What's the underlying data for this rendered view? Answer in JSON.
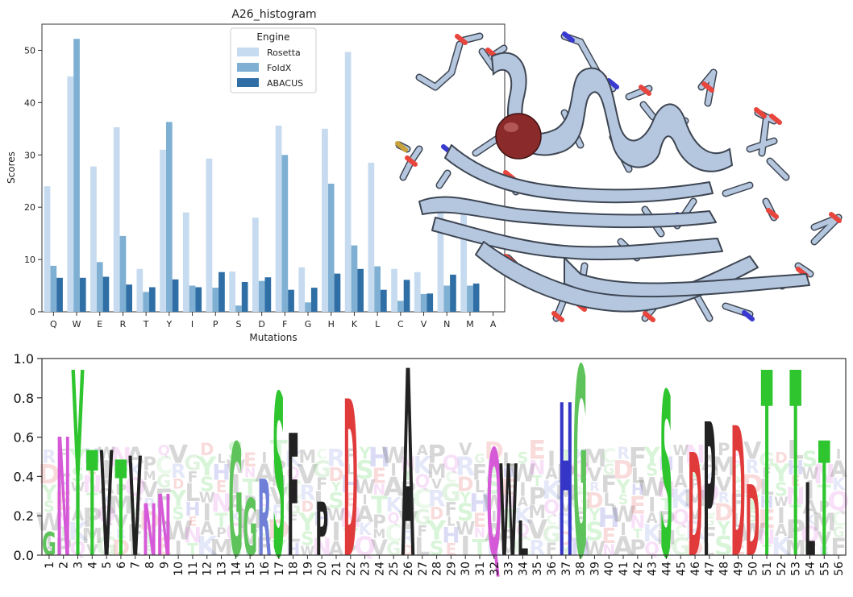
{
  "colors": {
    "rosetta": "#c6dbef",
    "foldx": "#7fb0d3",
    "abacus": "#2f6fa6",
    "protein_ribbon": "#b5c7df",
    "protein_outline": "#3e4653",
    "atom_sphere": "#8b2a2a",
    "oxygen": "#e8453c",
    "nitrogen": "#3a3ad0",
    "sulfur": "#c8a23a"
  },
  "histogram": {
    "title": "A26_histogram",
    "xlabel": "Mutations",
    "ylabel": "Scores",
    "legend_title": "Engine",
    "legend_position": "top-center"
  },
  "chart_data": [
    {
      "type": "bar",
      "title": "A26_histogram",
      "xlabel": "Mutations",
      "ylabel": "Scores",
      "ylim": [
        0,
        55
      ],
      "yticks": [
        0,
        10,
        20,
        30,
        40,
        50
      ],
      "grid": false,
      "legend_title": "Engine",
      "categories": [
        "Q",
        "W",
        "E",
        "R",
        "T",
        "Y",
        "I",
        "P",
        "S",
        "D",
        "F",
        "G",
        "H",
        "K",
        "L",
        "C",
        "V",
        "N",
        "M",
        "A"
      ],
      "series": [
        {
          "name": "Rosetta",
          "values": [
            24,
            45,
            27.8,
            35.3,
            8.2,
            31,
            19,
            29.3,
            7.7,
            18,
            35.6,
            8.5,
            35,
            49.7,
            28.5,
            8.2,
            7.6,
            19,
            19,
            0
          ]
        },
        {
          "name": "FoldX",
          "values": [
            8.8,
            52.2,
            9.5,
            14.5,
            3.8,
            36.3,
            5,
            4.6,
            1.2,
            5.9,
            30,
            1.8,
            24.5,
            12.7,
            8.7,
            2.1,
            3.4,
            5,
            5,
            0
          ]
        },
        {
          "name": "ABACUS",
          "values": [
            6.5,
            6.5,
            6.7,
            5.2,
            4.7,
            6.2,
            4.7,
            7.6,
            5.7,
            6.6,
            4.2,
            4.6,
            7.3,
            8.2,
            4.2,
            6.1,
            3.5,
            7.1,
            5.4,
            0
          ]
        }
      ]
    },
    {
      "type": "sequence-logo",
      "ylim": [
        0,
        1.0
      ],
      "yticks": [
        "0.0",
        "0.2",
        "0.4",
        "0.6",
        "0.8",
        "1.0"
      ],
      "positions": [
        "1",
        "2",
        "3",
        "4",
        "5",
        "6",
        "7",
        "8",
        "9",
        "10",
        "11",
        "12",
        "13",
        "14",
        "15",
        "16",
        "17",
        "18",
        "19",
        "20",
        "21",
        "22",
        "23",
        "24",
        "25",
        "26",
        "27",
        "28",
        "29",
        "30",
        "31",
        "32",
        "33",
        "34",
        "35",
        "36",
        "37",
        "38",
        "39",
        "40",
        "41",
        "42",
        "43",
        "44",
        "45",
        "46",
        "47",
        "48",
        "49",
        "50",
        "51",
        "52",
        "53",
        "54",
        "55",
        "56"
      ],
      "dominant_letters": [
        {
          "pos": 1,
          "letter": "G",
          "height": 0.12
        },
        {
          "pos": 2,
          "letter": "N",
          "height": 0.62
        },
        {
          "pos": 3,
          "letter": "Y",
          "height": 0.97
        },
        {
          "pos": 4,
          "letter": "T",
          "height": 0.55
        },
        {
          "pos": 5,
          "letter": "V",
          "height": 0.55
        },
        {
          "pos": 6,
          "letter": "T",
          "height": 0.5
        },
        {
          "pos": 7,
          "letter": "V",
          "height": 0.52
        },
        {
          "pos": 8,
          "letter": "N",
          "height": 0.27
        },
        {
          "pos": 9,
          "letter": "N",
          "height": 0.32
        },
        {
          "pos": 14,
          "letter": "G",
          "height": 0.59
        },
        {
          "pos": 15,
          "letter": "G",
          "height": 0.3
        },
        {
          "pos": 16,
          "letter": "R",
          "height": 0.4
        },
        {
          "pos": 17,
          "letter": "S",
          "height": 0.85
        },
        {
          "pos": 18,
          "letter": "F",
          "height": 0.64
        },
        {
          "pos": 20,
          "letter": "P",
          "height": 0.28
        },
        {
          "pos": 22,
          "letter": "D",
          "height": 0.82
        },
        {
          "pos": 26,
          "letter": "A",
          "height": 0.98
        },
        {
          "pos": 32,
          "letter": "Q",
          "height": 0.56
        },
        {
          "pos": 33,
          "letter": "W",
          "height": 0.48
        },
        {
          "pos": 34,
          "letter": "L",
          "height": 0.18
        },
        {
          "pos": 37,
          "letter": "H",
          "height": 0.8
        },
        {
          "pos": 38,
          "letter": "G",
          "height": 0.99
        },
        {
          "pos": 44,
          "letter": "S",
          "height": 0.86
        },
        {
          "pos": 46,
          "letter": "D",
          "height": 0.54
        },
        {
          "pos": 47,
          "letter": "P",
          "height": 0.7
        },
        {
          "pos": 49,
          "letter": "D",
          "height": 0.68
        },
        {
          "pos": 50,
          "letter": "D",
          "height": 0.37
        },
        {
          "pos": 51,
          "letter": "T",
          "height": 0.97
        },
        {
          "pos": 53,
          "letter": "T",
          "height": 0.97
        },
        {
          "pos": 54,
          "letter": "L",
          "height": 0.38
        },
        {
          "pos": 55,
          "letter": "T",
          "height": 0.6
        }
      ]
    }
  ]
}
